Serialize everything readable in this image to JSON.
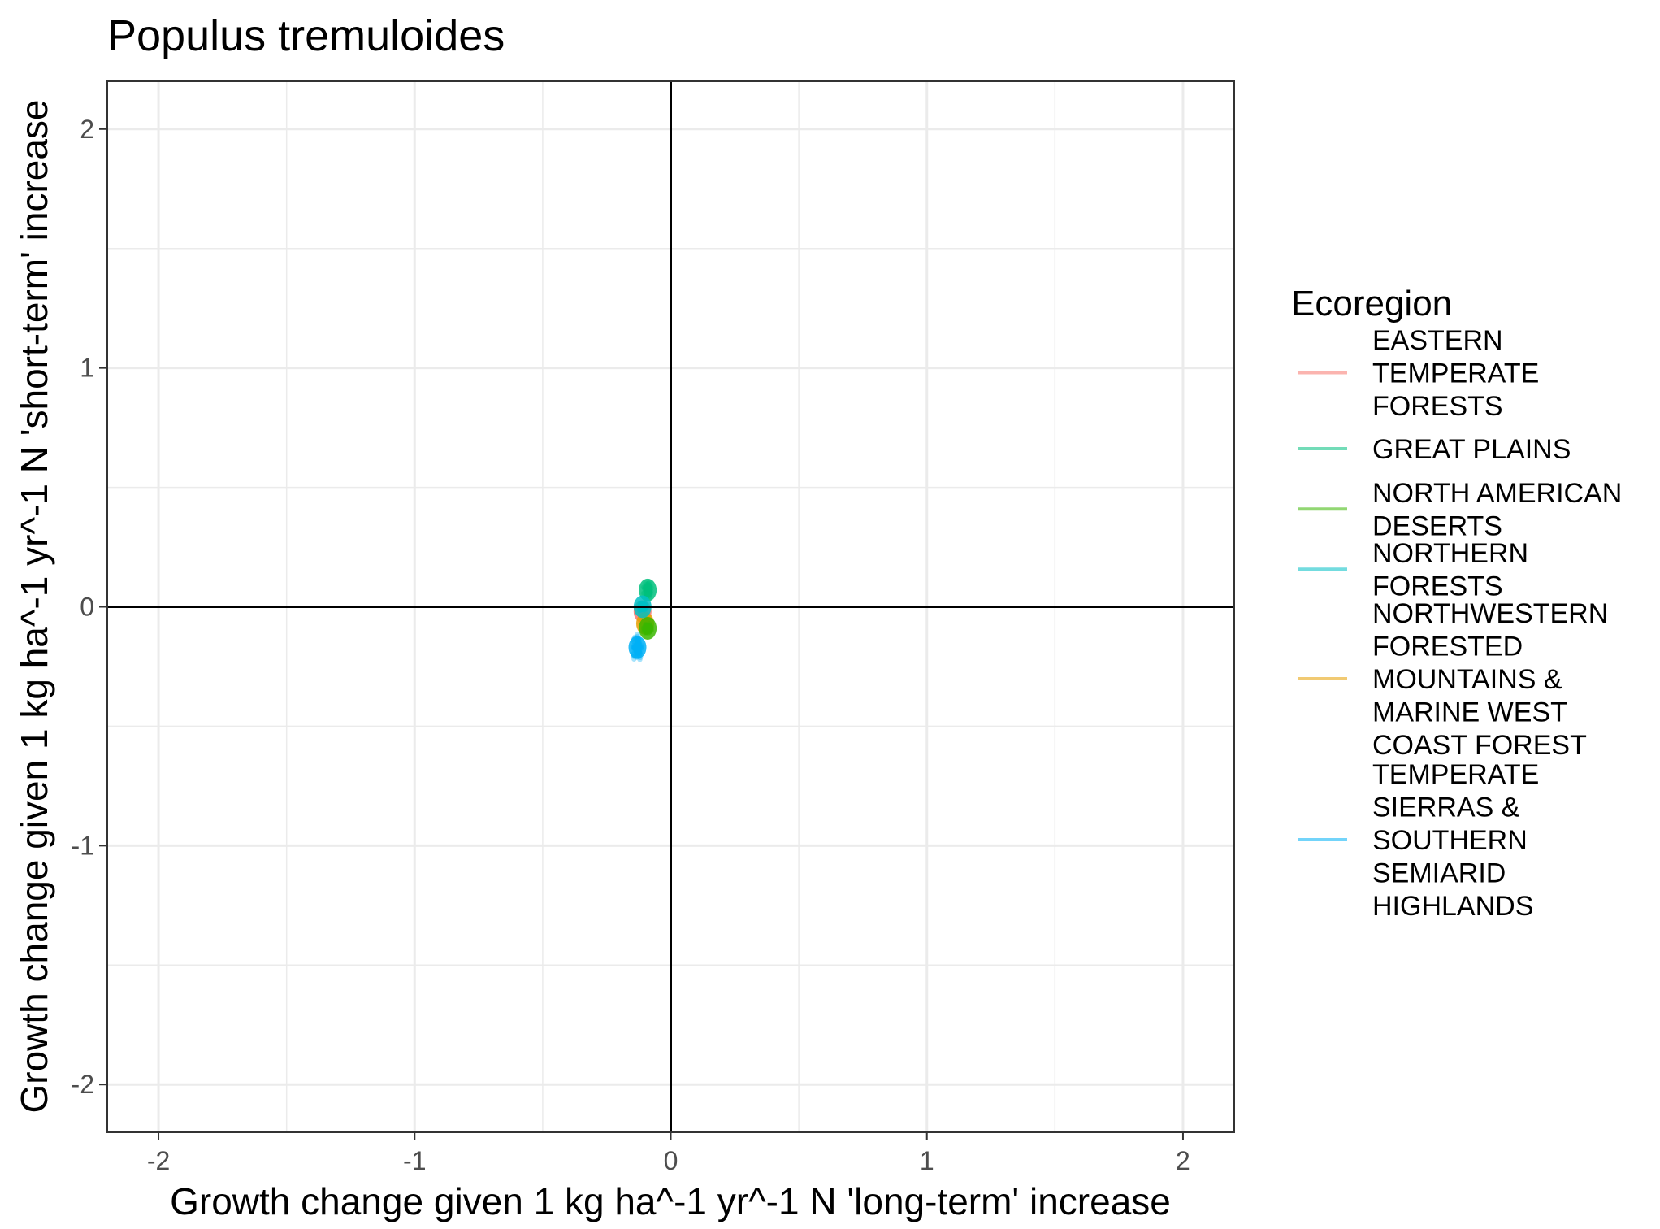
{
  "chart_data": {
    "type": "scatter",
    "title": "Populus tremuloides",
    "xlabel": "Growth change given 1 kg ha^-1 yr^-1 N 'long-term' increase",
    "ylabel": "Growth change given 1 kg ha^-1 yr^-1 N 'short-term' increase",
    "xlim": [
      -2.2,
      2.2
    ],
    "ylim": [
      -2.2,
      2.2
    ],
    "x_ticks": [
      -2,
      -1,
      0,
      1,
      2
    ],
    "y_ticks": [
      -2,
      -1,
      0,
      1,
      2
    ],
    "x_tick_labels": [
      "-2",
      "-1",
      "0",
      "1",
      "2"
    ],
    "y_tick_labels": [
      "-2",
      "-1",
      "0",
      "1",
      "2"
    ],
    "grid": true,
    "reference_lines": {
      "x": 0,
      "y": 0
    },
    "legend": {
      "title": "Ecoregion",
      "placement": "right",
      "entries": [
        {
          "lines": [
            "EASTERN",
            "TEMPERATE",
            "FORESTS"
          ],
          "color": "#F8766D"
        },
        {
          "lines": [
            "GREAT PLAINS"
          ],
          "color": "#00BF7D"
        },
        {
          "lines": [
            "NORTH AMERICAN",
            "DESERTS"
          ],
          "color": "#39B600"
        },
        {
          "lines": [
            "NORTHERN",
            "FORESTS"
          ],
          "color": "#00BFC4"
        },
        {
          "lines": [
            "NORTHWESTERN",
            "FORESTED",
            "MOUNTAINS &",
            "MARINE WEST",
            "COAST FOREST"
          ],
          "color": "#E69F00"
        },
        {
          "lines": [
            "TEMPERATE",
            "SIERRAS &",
            "SOUTHERN",
            "SEMIARID",
            "HIGHLANDS"
          ],
          "color": "#00B0F6"
        }
      ]
    },
    "series": [
      {
        "name": "GREAT PLAINS",
        "color": "#00BF7D",
        "x": -0.09,
        "y": 0.07,
        "sx": 0.01,
        "sy": 0.02
      },
      {
        "name": "EASTERN TEMPERATE FORESTS",
        "color": "#F8766D",
        "x": -0.11,
        "y": -0.02,
        "sx": 0.008,
        "sy": 0.02
      },
      {
        "name": "NORTHWESTERN FORESTED MOUNTAINS & MARINE WEST COAST FOREST",
        "color": "#E69F00",
        "x": -0.1,
        "y": -0.07,
        "sx": 0.01,
        "sy": 0.02
      },
      {
        "name": "NORTH AMERICAN DESERTS",
        "color": "#39B600",
        "x": -0.09,
        "y": -0.09,
        "sx": 0.01,
        "sy": 0.015
      },
      {
        "name": "NORTHERN FORESTS",
        "color": "#00BFC4",
        "x": -0.11,
        "y": 0.0,
        "sx": 0.01,
        "sy": 0.012
      },
      {
        "name": "TEMPERATE SIERRAS & SOUTHERN SEMIARID HIGHLANDS",
        "color": "#00B0F6",
        "x": -0.13,
        "y": -0.17,
        "sx": 0.012,
        "sy": 0.03
      }
    ]
  }
}
